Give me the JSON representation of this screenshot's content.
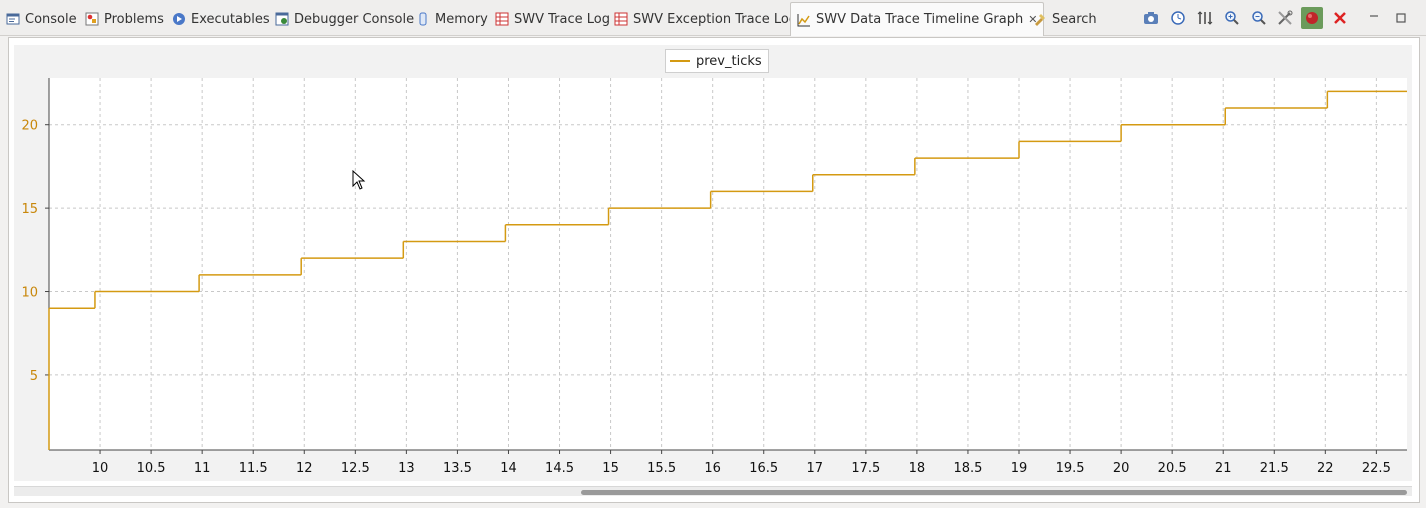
{
  "tabs": [
    {
      "label": "Console",
      "icon": "console-icon"
    },
    {
      "label": "Problems",
      "icon": "problems-icon"
    },
    {
      "label": "Executables",
      "icon": "executables-icon"
    },
    {
      "label": "Debugger Console",
      "icon": "debugger-console-icon"
    },
    {
      "label": "Memory",
      "icon": "memory-icon"
    },
    {
      "label": "SWV Trace Log",
      "icon": "table-icon"
    },
    {
      "label": "SWV Exception Trace Log",
      "icon": "table-icon"
    },
    {
      "label": "SWV Data Trace Timeline Graph",
      "icon": "graph-icon",
      "active": true
    },
    {
      "label": "Search",
      "icon": "search-flashlight-icon"
    }
  ],
  "toolbar": [
    "snapshot-icon",
    "clock-icon",
    "adjust-y-axis-icon",
    "zoom-in-icon",
    "zoom-out-icon",
    "configure-trace-icon",
    "start-trace-icon",
    "remove-icon"
  ],
  "colors": {
    "series": "#d49a12",
    "axis_labels": "#c8870a",
    "grid": "#c8c8c8",
    "start_trace_active": "#6b9b5b"
  },
  "chart_data": {
    "type": "line",
    "step": true,
    "legend": {
      "position": "top-center"
    },
    "grid": true,
    "xlim": [
      9.5,
      22.8
    ],
    "ylim": [
      0.5,
      22.8
    ],
    "yticks": [
      5,
      10,
      15,
      20
    ],
    "xticks": [
      10,
      10.5,
      11,
      11.5,
      12,
      12.5,
      13,
      13.5,
      14,
      14.5,
      15,
      15.5,
      16,
      16.5,
      17,
      17.5,
      18,
      18.5,
      19,
      19.5,
      20,
      20.5,
      21,
      21.5,
      22,
      22.5
    ],
    "series": [
      {
        "name": "prev_ticks",
        "x": [
          9.5,
          9.95,
          10.97,
          11.97,
          12.97,
          13.97,
          14.98,
          15.98,
          16.98,
          17.98,
          19.0,
          20.0,
          21.02,
          22.02
        ],
        "y": [
          9,
          10,
          11,
          12,
          13,
          14,
          15,
          16,
          17,
          18,
          19,
          20,
          21,
          22
        ]
      }
    ]
  }
}
